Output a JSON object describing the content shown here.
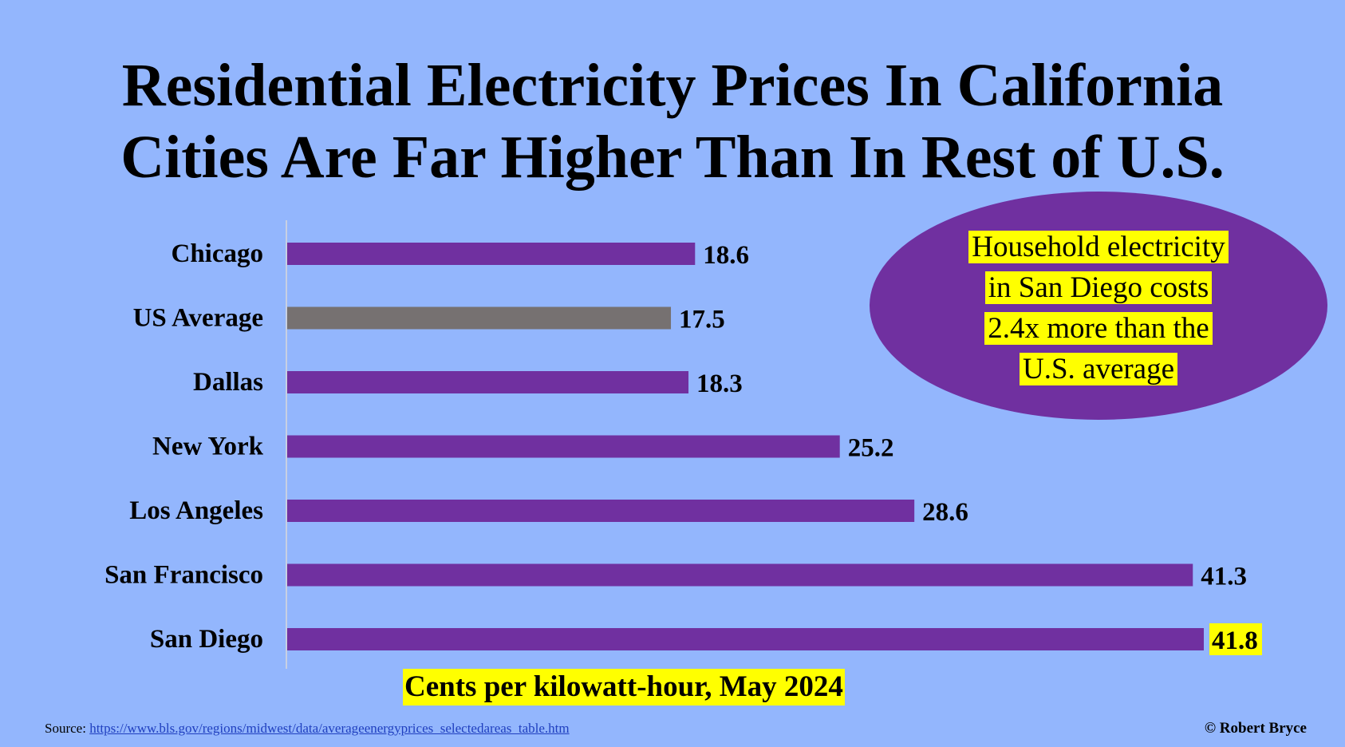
{
  "title": {
    "line1": "Residential Electricity Prices In California",
    "line2": "Cities Are Far Higher Than In Rest of U.S."
  },
  "callout": {
    "lines": [
      "Household electricity",
      "in San Diego costs",
      "2.4x more than the",
      "U.S. average"
    ],
    "fill_color": "#7030a0",
    "highlight_color": "#ffff00"
  },
  "source": {
    "label": "Source",
    "separator": ": ",
    "url_text": "https://www.bls.gov/regions/midwest/data/averageenergyprices_selectedareas_table.htm"
  },
  "copyright": "© Robert Bryce",
  "colors": {
    "background": "#93b6fd",
    "bar_primary": "#7030a0",
    "bar_average": "#767171",
    "highlight": "#ffff00"
  },
  "chart_data": {
    "type": "bar",
    "orientation": "horizontal",
    "title": "Residential Electricity Prices In California Cities Are Far Higher Than In Rest of U.S.",
    "xlabel": "Cents per kilowatt-hour, May 2024",
    "categories": [
      "Chicago",
      "US Average",
      "Dallas",
      "New York",
      "Los Angeles",
      "San Francisco",
      "San Diego"
    ],
    "values": [
      18.6,
      17.5,
      18.3,
      25.2,
      28.6,
      41.3,
      41.8
    ],
    "value_labels": [
      "18.6",
      "17.5",
      "18.3",
      "25.2",
      "28.6",
      "41.3",
      "41.8"
    ],
    "bar_colors": [
      "#7030a0",
      "#767171",
      "#7030a0",
      "#7030a0",
      "#7030a0",
      "#7030a0",
      "#7030a0"
    ],
    "highlighted_value_index": 6,
    "xlim": [
      0,
      41.8
    ],
    "grid": false,
    "legend": "none"
  }
}
